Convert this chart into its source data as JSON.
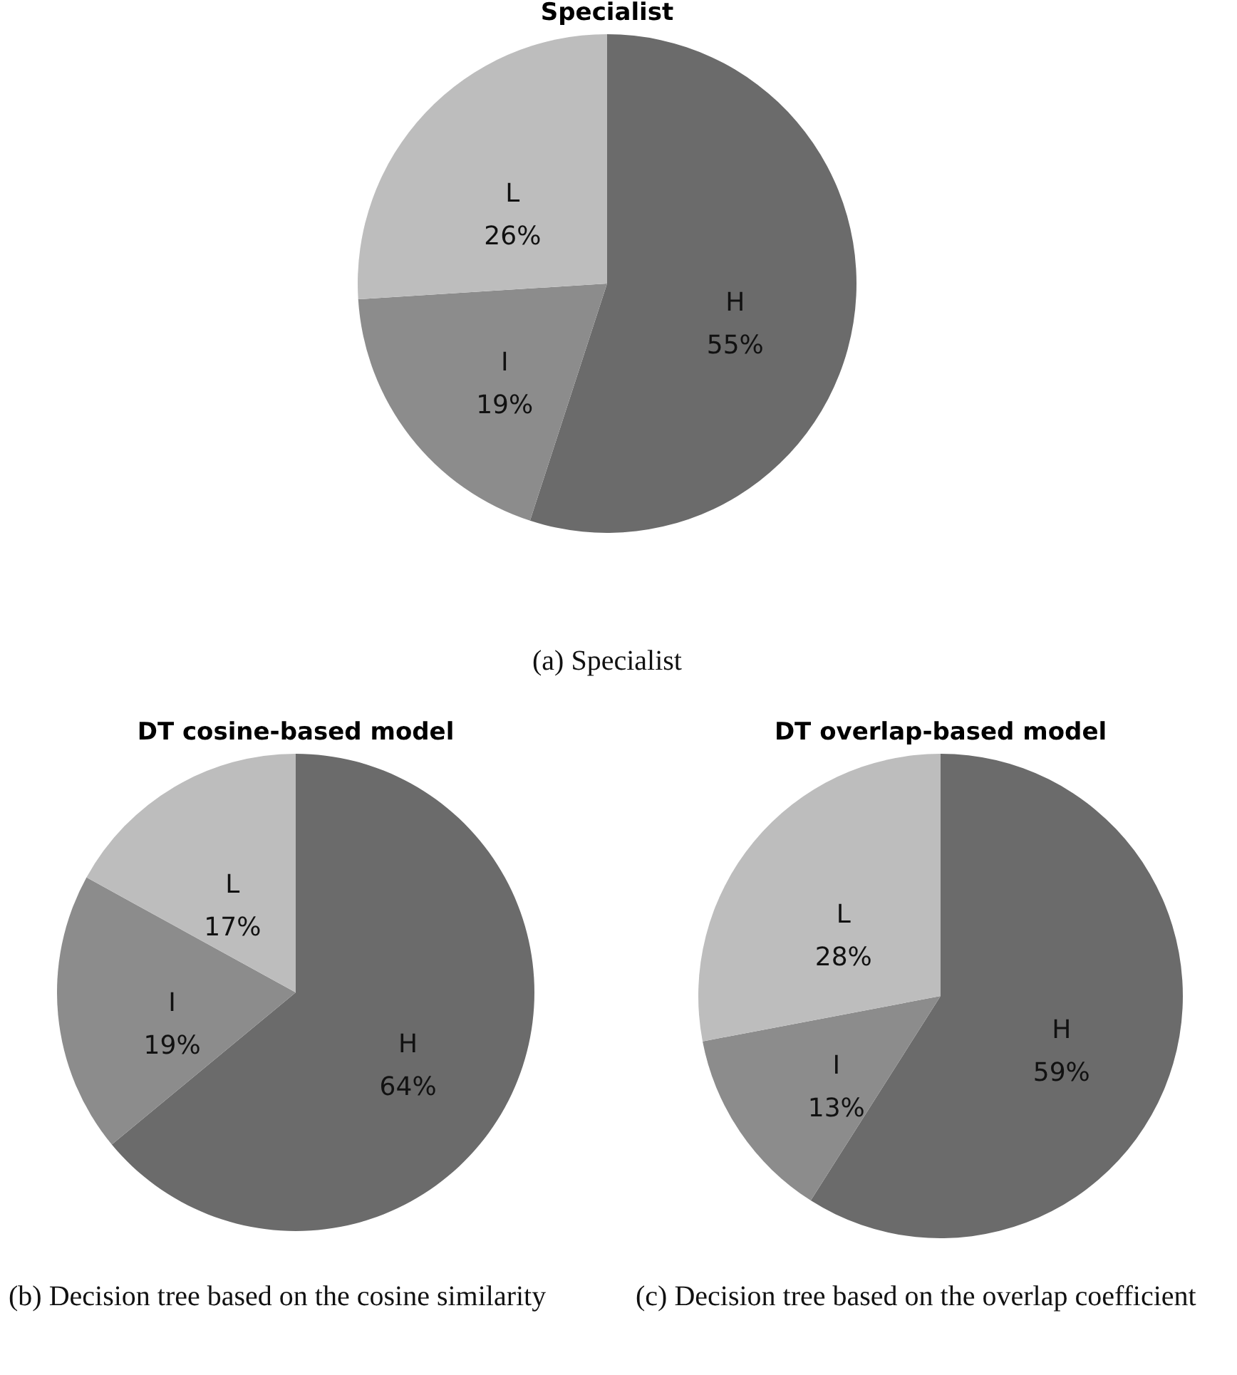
{
  "chart_data": [
    {
      "type": "pie",
      "title": "Specialist",
      "categories": [
        "H",
        "I",
        "L"
      ],
      "values": [
        55,
        19,
        26
      ],
      "value_labels": [
        "55%",
        "19%",
        "26%"
      ],
      "colors": [
        "#6b6b6b",
        "#8c8c8c",
        "#bdbdbd"
      ],
      "annotations": [
        "(a) Specialist"
      ]
    },
    {
      "type": "pie",
      "title": "DT cosine-based  model",
      "categories": [
        "H",
        "I",
        "L"
      ],
      "values": [
        64,
        19,
        17
      ],
      "value_labels": [
        "64%",
        "19%",
        "17%"
      ],
      "colors": [
        "#6b6b6b",
        "#8c8c8c",
        "#bdbdbd"
      ],
      "annotations": [
        "(b) Decision tree based on the cosine similarity"
      ]
    },
    {
      "type": "pie",
      "title": "DT overlap-based  model",
      "categories": [
        "H",
        "I",
        "L"
      ],
      "values": [
        59,
        13,
        28
      ],
      "value_labels": [
        "59%",
        "13%",
        "28%"
      ],
      "colors": [
        "#6b6b6b",
        "#8c8c8c",
        "#bdbdbd"
      ],
      "annotations": [
        "(c) Decision tree based on the overlap coefficient"
      ]
    }
  ]
}
